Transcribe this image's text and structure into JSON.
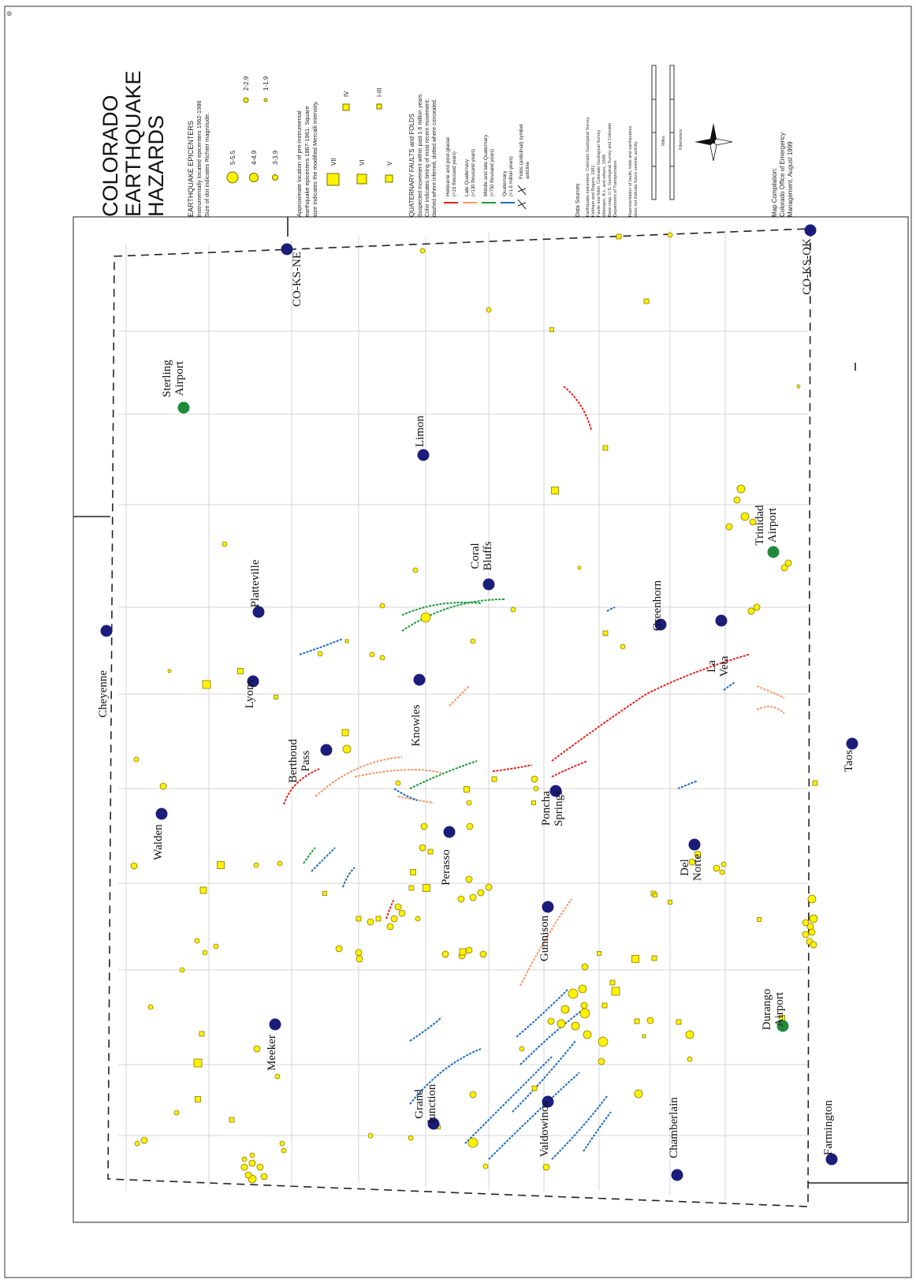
{
  "title": [
    "COLORADO",
    "EARTHQUAKE",
    "HAZARDS"
  ],
  "legend": {
    "epicenters_heading": "EARTHQUAKE EPICENTERS",
    "epicenters_note1": "Instrumentally located epicenters 1962-1986",
    "epicenters_note2": "Size of dot indicates Richter magnitude.",
    "magnitude_classes": [
      "5-5.5",
      "4-4.9",
      "3-3.9",
      "2-2.9",
      "1-1.9"
    ],
    "intensity_note1": "Approximate location of pre-instrumental",
    "intensity_note2": "earthquake epicenters 1867-1961. Square",
    "intensity_note3": "size indicates the modified Mercalli intensity.",
    "intensity_classes": [
      "VII",
      "VI",
      "V",
      "IV",
      "I-III"
    ],
    "faults_heading": "QUATERNARY FAULTS and FOLDS",
    "faults_note1": "Suspected movement within past 1.6 million years.",
    "faults_note2": "Color indicates timing of most recent movement;",
    "faults_note3": "dashed where inferred, dotted where concealed.",
    "fault_classes": [
      {
        "label": "Holocene and post-glacial",
        "sub": "(<15 thousand years)",
        "color": "#e8231f"
      },
      {
        "label": "Late Quaternary",
        "sub": "(<130 thousand years)",
        "color": "#f59a6a"
      },
      {
        "label": "Middle and late Quaternary",
        "sub": "(<750 thousand years)",
        "color": "#1e9a3c"
      },
      {
        "label": "Quaternary",
        "sub": "(<1.6 million years)",
        "color": "#1f6cc4"
      }
    ],
    "folds_label": "Folds (anticlinal) symbol",
    "folds_sub": "anticline",
    "sources_heading": "Data Sources",
    "sources_lines": [
      "Earthquake epicenters: Colorado Geological Survey",
      "Kirkham and Rogers, 1981",
      "Faults and folds: Colorado Geological Survey",
      "Widmann, B.L. and others, 1998",
      "Base map: U.S. Geological Survey and Colorado",
      "Department of Transportation"
    ],
    "disclaimer_lines": [
      "Representation of faults, folds and earthquakes",
      "does not indicate future seismic activity."
    ],
    "scale_miles": "Miles",
    "scale_km": "Kilometers",
    "compilation_lines": [
      "Map Compilation:",
      "Colorado Office of Emergency",
      "Management, August 1999"
    ]
  },
  "places": [
    {
      "name": "Cheyenne",
      "type": "city"
    },
    {
      "name": "CO-KS-NE",
      "type": "city"
    },
    {
      "name": "Sterling Airport",
      "type": "airport"
    },
    {
      "name": "Limon",
      "type": "city"
    },
    {
      "name": "Coral Bluffs",
      "type": "city"
    },
    {
      "name": "Platteville",
      "type": "city"
    },
    {
      "name": "Lyons",
      "type": "city"
    },
    {
      "name": "Knowles",
      "type": "city"
    },
    {
      "name": "Berthoud Pass",
      "type": "city"
    },
    {
      "name": "Walden",
      "type": "city"
    },
    {
      "name": "Perasso",
      "type": "city"
    },
    {
      "name": "Poncha Springs",
      "type": "city"
    },
    {
      "name": "Greenhorn",
      "type": "city"
    },
    {
      "name": "La Veta",
      "type": "city"
    },
    {
      "name": "Trinidad Airport",
      "type": "airport"
    },
    {
      "name": "CO-KS-OK",
      "type": "city"
    },
    {
      "name": "Taos",
      "type": "city"
    },
    {
      "name": "Del Norte",
      "type": "city"
    },
    {
      "name": "Gunnison",
      "type": "city"
    },
    {
      "name": "Durango Airport",
      "type": "airport"
    },
    {
      "name": "Meeker",
      "type": "city"
    },
    {
      "name": "Grand Junction",
      "type": "city"
    },
    {
      "name": "Valdowinos",
      "type": "city"
    },
    {
      "name": "Chamberlain",
      "type": "city"
    },
    {
      "name": "Farmington",
      "type": "city"
    }
  ],
  "colors": {
    "city_dot": "#1c1c7a",
    "airport_dot": "#1f8a3a",
    "epicenter": "#fff200",
    "epicenter_stroke": "#8a7a00",
    "county_lines": "#cfcfcf",
    "holocene": "#e8231f",
    "late_quaternary": "#f59a6a",
    "middle_quaternary": "#1e9a3c",
    "quaternary": "#1f6cc4"
  }
}
